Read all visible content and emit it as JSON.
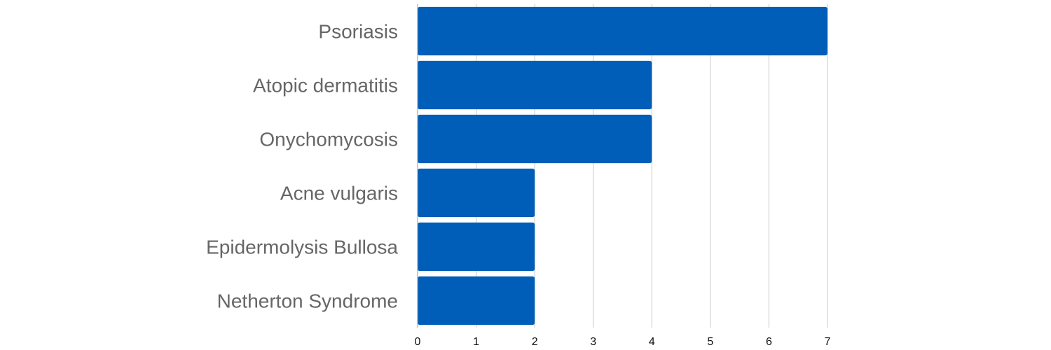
{
  "chart_data": {
    "type": "bar",
    "orientation": "horizontal",
    "categories": [
      "Psoriasis",
      "Atopic dermatitis",
      "Onychomycosis",
      "Acne vulgaris",
      "Epidermolysis Bullosa",
      "Netherton Syndrome"
    ],
    "values": [
      7,
      4,
      4,
      2,
      2,
      2
    ],
    "title": "",
    "xlabel": "",
    "ylabel": "",
    "xlim": [
      0,
      7
    ],
    "x_ticks": [
      "0",
      "1",
      "2",
      "3",
      "4",
      "5",
      "6",
      "7"
    ],
    "grid": true,
    "bar_color": "#005EB8"
  }
}
